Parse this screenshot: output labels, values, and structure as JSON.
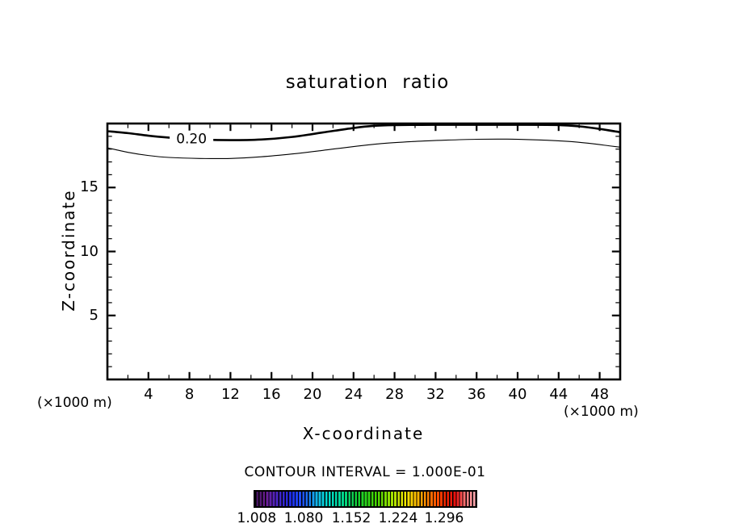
{
  "chart_data": {
    "type": "contour",
    "title": "saturation ratio",
    "xlabel": "X-coordinate",
    "zlabel": "Z-coordinate",
    "x_units_note": "(×1000 m)",
    "contour_interval_label": "CONTOUR INTERVAL = 1.000E-01",
    "contour_interval": "1.000E-01",
    "xlim": [
      0,
      50
    ],
    "zlim": [
      0,
      20
    ],
    "x_major_ticks": [
      4,
      8,
      12,
      16,
      20,
      24,
      28,
      32,
      36,
      40,
      44,
      48
    ],
    "x_minor_tick_step": 2,
    "z_major_ticks": [
      5,
      10,
      15
    ],
    "z_minor_tick_step": 1,
    "line_color": "#000000",
    "contours": [
      {
        "level": 0.2,
        "label": "0.20",
        "style": "thick",
        "label_x": 8.2,
        "label_z": 18.82,
        "points": [
          [
            0,
            19.4
          ],
          [
            2,
            19.25
          ],
          [
            4,
            19.05
          ],
          [
            6,
            18.9
          ],
          [
            9,
            18.75
          ],
          [
            12,
            18.7
          ],
          [
            15,
            18.75
          ],
          [
            18,
            18.95
          ],
          [
            21,
            19.3
          ],
          [
            24,
            19.65
          ],
          [
            26,
            19.82
          ],
          [
            28,
            19.88
          ],
          [
            32,
            19.9
          ],
          [
            36,
            19.9
          ],
          [
            40,
            19.9
          ],
          [
            44,
            19.88
          ],
          [
            46,
            19.78
          ],
          [
            48,
            19.58
          ],
          [
            50,
            19.32
          ]
        ]
      },
      {
        "level": 0.1,
        "label": null,
        "style": "thin",
        "points": [
          [
            0,
            18.1
          ],
          [
            2,
            17.75
          ],
          [
            4,
            17.5
          ],
          [
            6,
            17.35
          ],
          [
            9,
            17.27
          ],
          [
            12,
            17.27
          ],
          [
            15,
            17.4
          ],
          [
            18,
            17.62
          ],
          [
            21,
            17.9
          ],
          [
            24,
            18.2
          ],
          [
            27,
            18.45
          ],
          [
            30,
            18.6
          ],
          [
            33,
            18.7
          ],
          [
            36,
            18.77
          ],
          [
            39,
            18.78
          ],
          [
            42,
            18.72
          ],
          [
            45,
            18.6
          ],
          [
            47,
            18.45
          ],
          [
            49,
            18.25
          ],
          [
            50,
            18.15
          ]
        ]
      }
    ],
    "colorbar": {
      "tick_labels": [
        "1.008",
        "1.080",
        "1.152",
        "1.224",
        "1.296"
      ],
      "tick_positions": [
        0.014,
        0.224,
        0.437,
        0.646,
        0.852
      ],
      "colors": [
        {
          "pos": 0,
          "hex": "#3f1557"
        },
        {
          "pos": 5,
          "hex": "#6d1d96"
        },
        {
          "pos": 10,
          "hex": "#4a24c8"
        },
        {
          "pos": 16,
          "hex": "#1e2ae0"
        },
        {
          "pos": 22,
          "hex": "#1f55ff"
        },
        {
          "pos": 28,
          "hex": "#10b6e8"
        },
        {
          "pos": 33,
          "hex": "#00e0d0"
        },
        {
          "pos": 40,
          "hex": "#00d489"
        },
        {
          "pos": 47,
          "hex": "#16cf2e"
        },
        {
          "pos": 55,
          "hex": "#46d800"
        },
        {
          "pos": 62,
          "hex": "#9fe000"
        },
        {
          "pos": 68,
          "hex": "#f2ea00"
        },
        {
          "pos": 74,
          "hex": "#ffb300"
        },
        {
          "pos": 80,
          "hex": "#ff6a00"
        },
        {
          "pos": 86,
          "hex": "#f52800"
        },
        {
          "pos": 91,
          "hex": "#e80f0f"
        },
        {
          "pos": 95,
          "hex": "#ff6f6f"
        },
        {
          "pos": 100,
          "hex": "#ffb0b8"
        }
      ]
    }
  }
}
